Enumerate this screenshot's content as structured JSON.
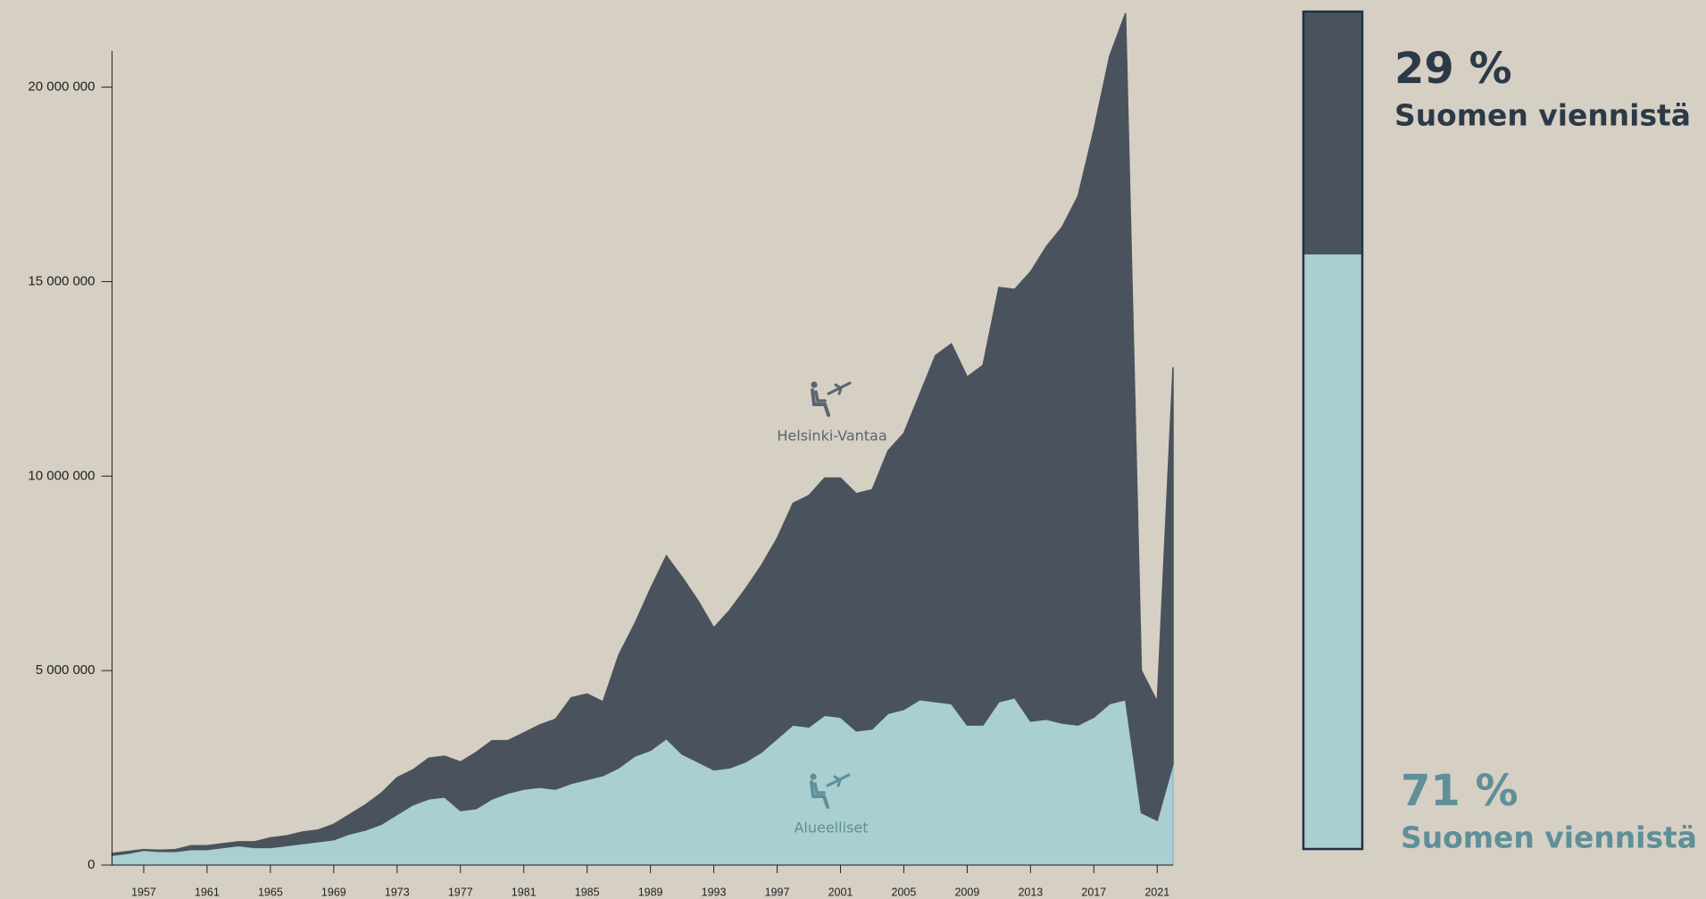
{
  "chart_data": [
    {
      "type": "area-stacked",
      "x": [
        1955,
        1956,
        1957,
        1958,
        1959,
        1960,
        1961,
        1962,
        1963,
        1964,
        1965,
        1966,
        1967,
        1968,
        1969,
        1970,
        1971,
        1972,
        1973,
        1974,
        1975,
        1976,
        1977,
        1978,
        1979,
        1980,
        1981,
        1982,
        1983,
        1984,
        1985,
        1986,
        1987,
        1988,
        1989,
        1990,
        1991,
        1992,
        1993,
        1994,
        1995,
        1996,
        1997,
        1998,
        1999,
        2000,
        2001,
        2002,
        2003,
        2004,
        2005,
        2006,
        2007,
        2008,
        2009,
        2010,
        2011,
        2012,
        2013,
        2014,
        2015,
        2016,
        2017,
        2018,
        2019,
        2020,
        2021,
        2022
      ],
      "series": [
        {
          "name": "Alueelliset",
          "color": "#a9cfd1",
          "line_color": "#7ec3c7",
          "label_color": "#5f8f98",
          "values": [
            250000,
            300000,
            380000,
            350000,
            350000,
            400000,
            400000,
            450000,
            500000,
            450000,
            450000,
            500000,
            550000,
            600000,
            650000,
            800000,
            900000,
            1050000,
            1300000,
            1550000,
            1700000,
            1750000,
            1400000,
            1450000,
            1700000,
            1850000,
            1950000,
            2000000,
            1950000,
            2100000,
            2200000,
            2300000,
            2500000,
            2800000,
            2950000,
            3250000,
            2850000,
            2650000,
            2450000,
            2500000,
            2650000,
            2900000,
            3250000,
            3600000,
            3550000,
            3850000,
            3800000,
            3450000,
            3500000,
            3900000,
            4000000,
            4250000,
            4200000,
            4150000,
            3600000,
            3600000,
            4200000,
            4300000,
            3700000,
            3750000,
            3650000,
            3600000,
            3800000,
            4150000,
            4250000,
            1350000,
            1150000,
            2600000
          ]
        },
        {
          "name": "Helsinki-Vantaa",
          "color": "#4a535d",
          "line_color": "#4a535d",
          "label_color": "#5a6570",
          "values": [
            50000,
            50000,
            20000,
            30000,
            50000,
            100000,
            100000,
            100000,
            100000,
            150000,
            250000,
            250000,
            300000,
            300000,
            400000,
            500000,
            650000,
            800000,
            950000,
            900000,
            1050000,
            1050000,
            1250000,
            1450000,
            1500000,
            1350000,
            1450000,
            1600000,
            1800000,
            2200000,
            2200000,
            1900000,
            2900000,
            3400000,
            4150000,
            4700000,
            4550000,
            4150000,
            3650000,
            4050000,
            4450000,
            4800000,
            5150000,
            5700000,
            5950000,
            6100000,
            6150000,
            6100000,
            6150000,
            6750000,
            7100000,
            7850000,
            8900000,
            9250000,
            8950000,
            9250000,
            10650000,
            10500000,
            11550000,
            12150000,
            12750000,
            13600000,
            15100000,
            16650000,
            17650000,
            3650000,
            3050000,
            10200000
          ]
        }
      ],
      "xlim": [
        1955,
        2022
      ],
      "xticks": [
        1957,
        1961,
        1965,
        1969,
        1973,
        1977,
        1981,
        1985,
        1989,
        1993,
        1997,
        2001,
        2005,
        2009,
        2013,
        2017,
        2021
      ],
      "ylim": [
        0,
        21000000
      ],
      "yticks": [
        0,
        {
          "value": 5000000,
          "label": "5 000 000"
        },
        {
          "value": 10000000,
          "label": "10 000 000"
        },
        {
          "value": 15000000,
          "label": "15 000 000"
        },
        {
          "value": 20000000,
          "label": "20 000 000"
        }
      ]
    },
    {
      "type": "bar-share",
      "values": [
        71,
        29
      ],
      "value_labels": [
        "71 %",
        "29 %"
      ],
      "labels": [
        "Suomen viennistä",
        "Suomen viennistä"
      ],
      "colors": [
        "#a9cfd1",
        "#4a535d"
      ],
      "label_colors": [
        "#5f8f98",
        "#2c3a47"
      ]
    }
  ]
}
